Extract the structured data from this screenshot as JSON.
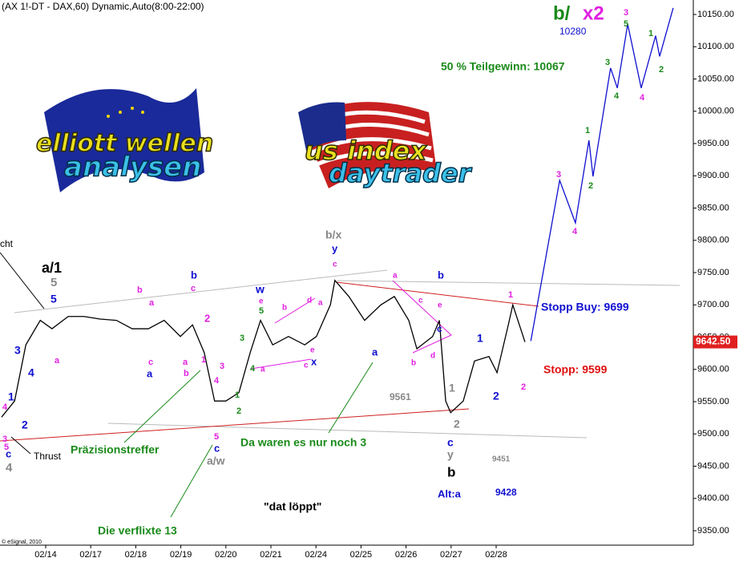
{
  "chart_data": {
    "type": "line",
    "title": "(AX 1!-DT - DAX,60) Dynamic,Auto(8:00-22:00)",
    "copyright": "© eSignal, 2010",
    "logos": [
      "elliott wellen",
      "analysen",
      "us index",
      "daytrader"
    ],
    "xlim": [
      -1.014,
      14.377
    ],
    "ylim": [
      9317.7,
      10172.4
    ],
    "xticks": [
      {
        "value": 0,
        "label": "02/14"
      },
      {
        "value": 1,
        "label": "02/17"
      },
      {
        "value": 2,
        "label": "02/18"
      },
      {
        "value": 3,
        "label": "02/19"
      },
      {
        "value": 4,
        "label": "02/20"
      },
      {
        "value": 5,
        "label": "02/21"
      },
      {
        "value": 6,
        "label": "02/24"
      },
      {
        "value": 7,
        "label": "02/25"
      },
      {
        "value": 8,
        "label": "02/26"
      },
      {
        "value": 9,
        "label": "02/27"
      },
      {
        "value": 10,
        "label": "02/28"
      }
    ],
    "yticks": [
      {
        "value": 9350,
        "label": "9350.00"
      },
      {
        "value": 9400,
        "label": "9400.00"
      },
      {
        "value": 9450,
        "label": "9450.00"
      },
      {
        "value": 9500,
        "label": "9500.00"
      },
      {
        "value": 9550,
        "label": "9550.00"
      },
      {
        "value": 9600,
        "label": "9600.00"
      },
      {
        "value": 9650,
        "label": "9650.00"
      },
      {
        "value": 9700,
        "label": "9700.00"
      },
      {
        "value": 9750,
        "label": "9750.00"
      },
      {
        "value": 9800,
        "label": "9800.00"
      },
      {
        "value": 9850,
        "label": "9850.00"
      },
      {
        "value": 9900,
        "label": "9900.00"
      },
      {
        "value": 9950,
        "label": "9950.00"
      },
      {
        "value": 10000,
        "label": "10000.00"
      },
      {
        "value": 10050,
        "label": "10050.00"
      },
      {
        "value": 10100,
        "label": "10100.00"
      },
      {
        "value": 10150,
        "label": "10150.00"
      }
    ],
    "grid": false,
    "series": [
      {
        "color": "#000000",
        "x": [
          -0.98,
          -0.69,
          -0.44,
          -0.12,
          0.14,
          0.5,
          0.85,
          1.21,
          1.57,
          1.92,
          2.28,
          2.63,
          2.99,
          3.26,
          3.52,
          3.75,
          4.0,
          4.29,
          4.54,
          4.77,
          5.04,
          5.39,
          5.75,
          6.01,
          6.32,
          6.42,
          6.73,
          7.08,
          7.44,
          7.74,
          8.06,
          8.24,
          8.59,
          8.74,
          8.88,
          8.99,
          9.27,
          9.52,
          9.84,
          10.02,
          10.27,
          10.37,
          10.64
        ],
        "values": [
          9526,
          9551,
          9638,
          9676,
          9663,
          9682,
          9682,
          9678,
          9676,
          9663,
          9663,
          9676,
          9651,
          9669,
          9626,
          9551,
          9551,
          9564,
          9626,
          9676,
          9638,
          9651,
          9638,
          9651,
          9700,
          9738,
          9713,
          9676,
          9700,
          9713,
          9676,
          9632,
          9651,
          9676,
          9551,
          9533,
          9551,
          9613,
          9620,
          9595,
          9669,
          9700,
          9642.5
        ]
      },
      {
        "color": "#1010d0",
        "x": [
          10.77,
          11.41,
          11.76,
          12.06,
          12.15,
          12.54,
          12.69,
          12.92,
          13.22,
          13.54,
          13.63,
          13.93
        ],
        "values": [
          9644,
          9893,
          9827,
          9955,
          9899,
          10067,
          10036,
          10135,
          10036,
          10117,
          10085,
          10160
        ]
      }
    ],
    "last_price": {
      "value": 9642.5,
      "label": "9642.50"
    },
    "annotations": [
      "cht",
      "a/1",
      "5",
      "5",
      "3",
      "4",
      "1",
      "2",
      "4",
      "3",
      "5",
      "c",
      "4",
      "Thrust",
      "a",
      "b",
      "a",
      "c",
      "a",
      "b",
      "c",
      "2",
      "a",
      "1",
      "b",
      "3",
      "4",
      "5",
      "c",
      "a/w",
      "Präzisionstreffer",
      "Die verflixte 13",
      "w",
      "e",
      "5",
      "3",
      "1",
      "2",
      "4",
      "a",
      "b",
      "d",
      "a",
      "e",
      "c",
      "x",
      "b/x",
      "y",
      "c",
      "a",
      "Da waren es nur noch 3",
      "a",
      "c",
      "b",
      "e",
      "b",
      "d",
      "c",
      "9561",
      "1",
      "2",
      "c",
      "y",
      "b",
      "9451",
      "Alt:a",
      "9428",
      "\"dat löppt\"",
      "1",
      "2",
      "1",
      "2",
      "Stopp Buy: 9699",
      "Stopp: 9599",
      "3",
      "4",
      "1",
      "2",
      "3",
      "4",
      "5",
      "3",
      "4",
      "1",
      "2",
      "50 % Teilgewinn: 10067",
      "b/",
      "x2",
      "10280"
    ]
  }
}
